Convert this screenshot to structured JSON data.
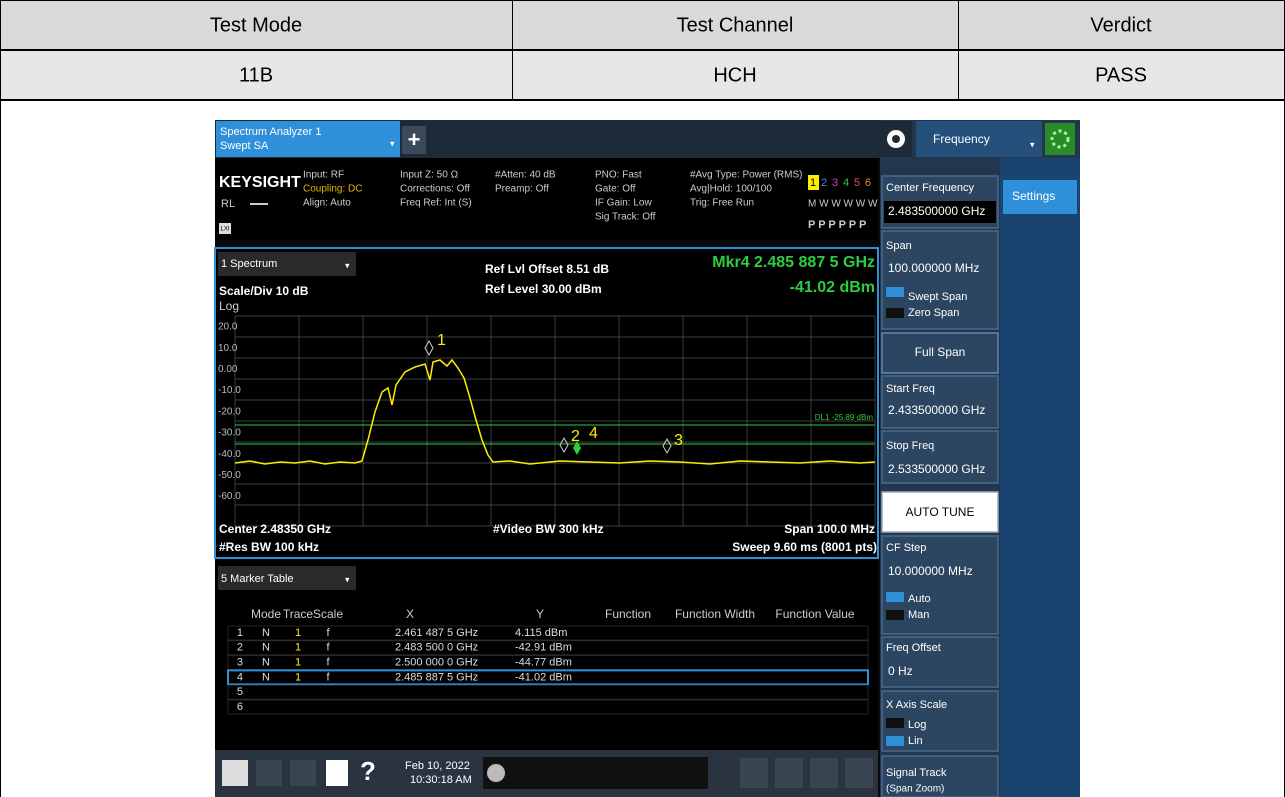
{
  "table": {
    "header": [
      "Test Mode",
      "Test Channel",
      "Verdict"
    ],
    "rows": [
      [
        "11B",
        "HCH",
        "PASS"
      ]
    ]
  },
  "screenshot": {
    "tab_title": "Spectrum Analyzer 1",
    "tab_subtitle": "Swept SA",
    "add_button": "+",
    "brand": "KEYSIGHT",
    "rl": "RL",
    "lxi": "LXI",
    "status": [
      "Input: RF",
      "Coupling: DC",
      "Align: Auto",
      "Input Z: 50 Ω",
      "Corrections: Off",
      "Freq Ref: Int (S)",
      "#Atten: 40 dB",
      "Preamp: Off",
      "PNO: Fast",
      "Gate: Off",
      "IF Gain: Low",
      "Sig Track: Off",
      "#Avg Type: Power (RMS)",
      "Avg|Hold: 100/100",
      "Trig: Free Run"
    ],
    "trace_numbers": [
      "1",
      "2",
      "3",
      "4",
      "5",
      "6"
    ],
    "trace_types": "M W W W W W",
    "detectors": "P P P P P P",
    "menu": "Frequency",
    "settings_tab": "Settings",
    "spectrum": {
      "window": "1 Spectrum",
      "scale": "Scale/Div 10 dB",
      "log": "Log",
      "ref_offset": "Ref Lvl Offset 8.51 dB",
      "ref_level": "Ref Level 30.00 dBm",
      "marker_freq": "Mkr4  2.485 887 5 GHz",
      "marker_level": "-41.02 dBm",
      "y_labels": [
        "20.0",
        "10.0",
        "0.00",
        "-10.0",
        "-20.0",
        "-30.0",
        "-40.0",
        "-50.0",
        "-60.0"
      ],
      "display_line": "DL1 -25.89 dBm",
      "marker_labels": [
        "1",
        "2",
        "3",
        "4"
      ],
      "center": "Center 2.48350 GHz",
      "res_bw": "#Res BW 100 kHz",
      "video_bw": "#Video BW 300 kHz",
      "span": "Span 100.0 MHz",
      "sweep": "Sweep 9.60 ms (8001 pts)"
    },
    "marker_table": {
      "window": "5 Marker Table",
      "columns": [
        "Mode",
        "Trace",
        "Scale",
        "X",
        "Y",
        "Function",
        "Function Width",
        "Function Value"
      ],
      "rows": [
        [
          "1",
          "N",
          "1",
          "f",
          "2.461 487 5 GHz",
          "4.115 dBm"
        ],
        [
          "2",
          "N",
          "1",
          "f",
          "2.483 500 0 GHz",
          "-42.91 dBm"
        ],
        [
          "3",
          "N",
          "1",
          "f",
          "2.500 000 0 GHz",
          "-44.77 dBm"
        ],
        [
          "4",
          "N",
          "1",
          "f",
          "2.485 887 5 GHz",
          "-41.02 dBm"
        ],
        [
          "5"
        ],
        [
          "6"
        ]
      ]
    },
    "panel": {
      "center_frequency": {
        "label": "Center Frequency",
        "value": "2.483500000 GHz"
      },
      "span": {
        "label": "Span",
        "value": "100.000000 MHz",
        "options": [
          "Swept Span",
          "Zero Span"
        ]
      },
      "full_span": "Full Span",
      "start_freq": {
        "label": "Start Freq",
        "value": "2.433500000 GHz"
      },
      "stop_freq": {
        "label": "Stop Freq",
        "value": "2.533500000 GHz"
      },
      "auto_tune": "AUTO TUNE",
      "cf_step": {
        "label": "CF Step",
        "value": "10.000000 MHz",
        "options": [
          "Auto",
          "Man"
        ]
      },
      "freq_offset": {
        "label": "Freq Offset",
        "value": "0 Hz"
      },
      "x_axis_scale": {
        "label": "X Axis Scale",
        "options": [
          "Log",
          "Lin"
        ]
      },
      "signal_track": {
        "label": "Signal Track",
        "note": "(Span Zoom)"
      }
    },
    "taskbar": {
      "help": "?",
      "date": "Feb 10, 2022",
      "time": "10:30:18 AM"
    }
  }
}
